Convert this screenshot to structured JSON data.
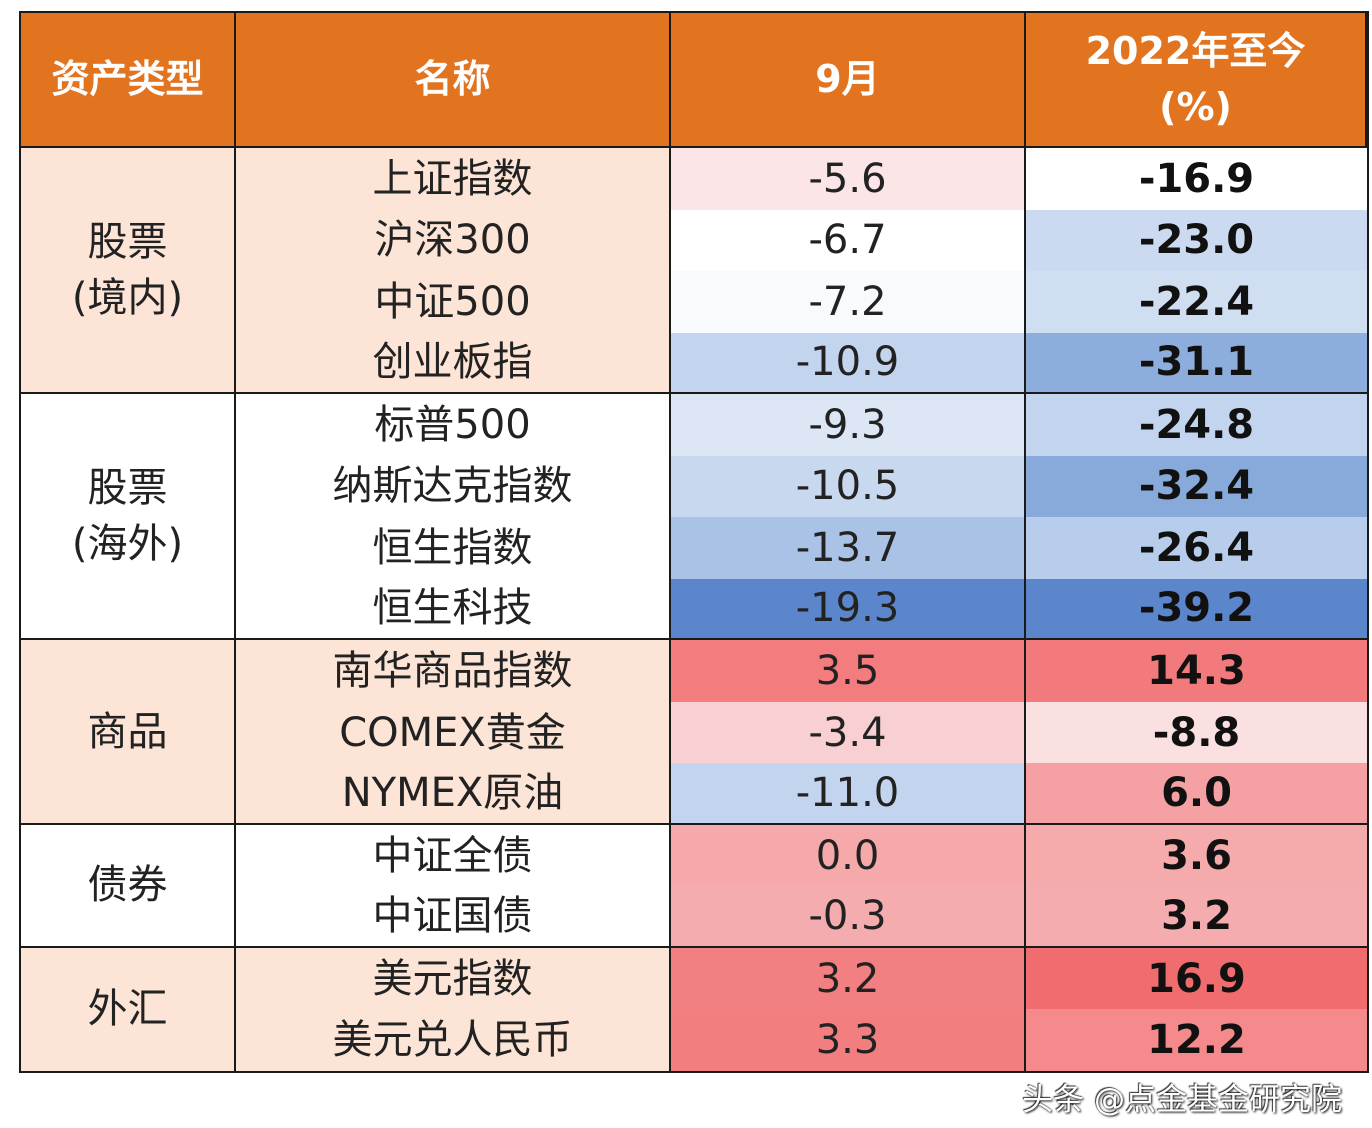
{
  "chart_data": {
    "type": "table",
    "columns": [
      "资产类型",
      "名称",
      "9月",
      "2022年至今\n(%)"
    ],
    "groups": [
      {
        "label": "股票\n(境内)",
        "bg": "#FCE4D6",
        "rows": [
          {
            "name": "上证指数",
            "sep": "-5.6",
            "ytd": "-16.9",
            "sep_color": "#FBE5E6",
            "ytd_color": "#FFFFFF"
          },
          {
            "name": "沪深300",
            "sep": "-6.7",
            "ytd": "-23.0",
            "sep_color": "#FFFFFF",
            "ytd_color": "#CBDAF0"
          },
          {
            "name": "中证500",
            "sep": "-7.2",
            "ytd": "-22.4",
            "sep_color": "#F8FAFD",
            "ytd_color": "#D0DEF1"
          },
          {
            "name": "创业板指",
            "sep": "-10.9",
            "ytd": "-31.1",
            "sep_color": "#C3D5EE",
            "ytd_color": "#8DAEDD"
          }
        ]
      },
      {
        "label": "股票\n(海外)",
        "bg": "#FFFFFF",
        "rows": [
          {
            "name": "标普500",
            "sep": "-9.3",
            "ytd": "-24.8",
            "sep_color": "#DCE6F5",
            "ytd_color": "#C3D5EE"
          },
          {
            "name": "纳斯达克指数",
            "sep": "-10.5",
            "ytd": "-32.4",
            "sep_color": "#C8D8EF",
            "ytd_color": "#88AADB"
          },
          {
            "name": "恒生指数",
            "sep": "-13.7",
            "ytd": "-26.4",
            "sep_color": "#A9C2E6",
            "ytd_color": "#B8CDEB"
          },
          {
            "name": "恒生科技",
            "sep": "-19.3",
            "ytd": "-39.2",
            "sep_color": "#5B86CC",
            "ytd_color": "#5B86CC"
          }
        ]
      },
      {
        "label": "商品",
        "bg": "#FCE4D6",
        "rows": [
          {
            "name": "南华商品指数",
            "sep": "3.5",
            "ytd": "14.3",
            "sep_color": "#F37C7E",
            "ytd_color": "#F37A7C"
          },
          {
            "name": "COMEX黄金",
            "sep": "-3.4",
            "ytd": "-8.8",
            "sep_color": "#F8D0D2",
            "ytd_color": "#FBE0E1"
          },
          {
            "name": "NYMEX原油",
            "sep": "-11.0",
            "ytd": "6.0",
            "sep_color": "#C2D4EE",
            "ytd_color": "#F5A0A2"
          }
        ]
      },
      {
        "label": "债券",
        "bg": "#FFFFFF",
        "rows": [
          {
            "name": "中证全债",
            "sep": "0.0",
            "ytd": "3.6",
            "sep_color": "#F5A9AB",
            "ytd_color": "#F5AAAC"
          },
          {
            "name": "中证国债",
            "sep": "-0.3",
            "ytd": "3.2",
            "sep_color": "#F5ACAE",
            "ytd_color": "#F5ACAE"
          }
        ]
      },
      {
        "label": "外汇",
        "bg": "#FCE4D6",
        "rows": [
          {
            "name": "美元指数",
            "sep": "3.2",
            "ytd": "16.9",
            "sep_color": "#F27F81",
            "ytd_color": "#F06C6F"
          },
          {
            "name": "美元兑人民币",
            "sep": "3.3",
            "ytd": "12.2",
            "sep_color": "#F27E80",
            "ytd_color": "#F48A8C"
          }
        ]
      }
    ],
    "header_color": "#E2731F"
  },
  "watermark": "头条 @点金基金研究院"
}
